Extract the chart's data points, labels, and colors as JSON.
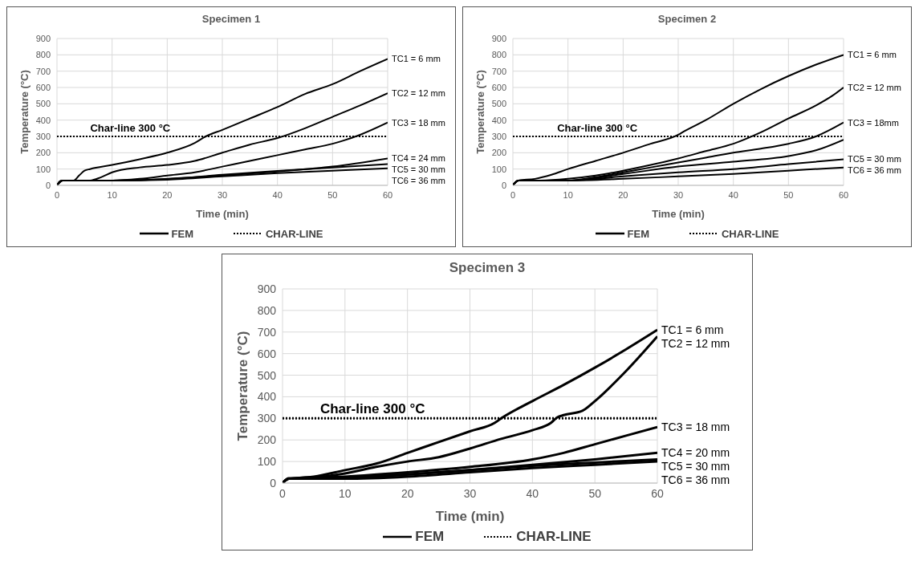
{
  "chart_data": [
    {
      "type": "line",
      "title": "Specimen 1",
      "xlabel": "Time (min)",
      "ylabel": "Temperature (°C)",
      "xlim": [
        0,
        60
      ],
      "xticks": [
        0,
        10,
        20,
        30,
        40,
        50,
        60
      ],
      "ylim": [
        0,
        900
      ],
      "yticks": [
        0,
        100,
        200,
        300,
        400,
        500,
        600,
        700,
        800,
        900
      ],
      "grid": true,
      "legend": "bottom",
      "legend_title": "FEM",
      "marker": "none",
      "annotations": [
        "Char-line 300 °C"
      ],
      "series": [
        {
          "name": "TC1 = 6 mm",
          "color": "#000000",
          "x": [
            0,
            0.5,
            1,
            3,
            4,
            5,
            6,
            10,
            15,
            20,
            25,
            27,
            30,
            35,
            40,
            45,
            50,
            55,
            60
          ],
          "values": [
            0,
            25,
            30,
            30,
            60,
            90,
            100,
            125,
            160,
            200,
            260,
            300,
            340,
            410,
            480,
            560,
            620,
            700,
            775
          ]
        },
        {
          "name": "TC2 = 12 mm",
          "color": "#000000",
          "x": [
            0,
            1,
            6,
            8,
            10,
            15,
            20,
            25,
            30,
            35,
            40,
            45,
            50,
            55,
            60
          ],
          "values": [
            0,
            30,
            30,
            50,
            80,
            110,
            125,
            150,
            200,
            250,
            290,
            350,
            420,
            490,
            565
          ]
        },
        {
          "name": "TC3 = 18 mm",
          "color": "#000000",
          "x": [
            0,
            1,
            10,
            15,
            20,
            25,
            30,
            35,
            40,
            45,
            50,
            52,
            55,
            60
          ],
          "values": [
            0,
            30,
            30,
            40,
            60,
            80,
            115,
            150,
            185,
            220,
            255,
            275,
            310,
            385
          ]
        },
        {
          "name": "TC4 = 24 mm",
          "color": "#000000",
          "x": [
            0,
            1,
            10,
            15,
            20,
            30,
            40,
            50,
            60
          ],
          "values": [
            0,
            30,
            30,
            32,
            40,
            60,
            85,
            115,
            165
          ]
        },
        {
          "name": "TC5 = 30 mm",
          "color": "#000000",
          "x": [
            0,
            1,
            10,
            20,
            30,
            40,
            50,
            60
          ],
          "values": [
            0,
            30,
            30,
            38,
            65,
            88,
            110,
            130
          ]
        },
        {
          "name": "TC6 = 36 mm",
          "color": "#000000",
          "x": [
            0,
            1,
            10,
            20,
            30,
            40,
            50,
            60
          ],
          "values": [
            0,
            30,
            30,
            35,
            55,
            75,
            90,
            105
          ]
        },
        {
          "name": "CHAR-LINE",
          "color": "#000000",
          "line_style": "dotted",
          "x": [
            0,
            60
          ],
          "values": [
            300,
            300
          ]
        }
      ]
    },
    {
      "type": "line",
      "title": "Specimen 2",
      "xlabel": "Time (min)",
      "ylabel": "Temperature (°C)",
      "xlim": [
        0,
        60
      ],
      "xticks": [
        0,
        10,
        20,
        30,
        40,
        50,
        60
      ],
      "ylim": [
        0,
        900
      ],
      "yticks": [
        0,
        100,
        200,
        300,
        400,
        500,
        600,
        700,
        800,
        900
      ],
      "grid": true,
      "legend": "bottom",
      "legend_title": "FEM",
      "marker": "none",
      "annotations": [
        "Char-line 300 °C"
      ],
      "series": [
        {
          "name": "TC1 = 6 mm",
          "color": "#000000",
          "x": [
            0,
            1,
            4,
            7,
            10,
            15,
            20,
            25,
            30,
            31,
            35,
            40,
            45,
            50,
            55,
            60
          ],
          "values": [
            0,
            30,
            40,
            65,
            100,
            150,
            200,
            255,
            310,
            330,
            400,
            500,
            590,
            670,
            740,
            800
          ]
        },
        {
          "name": "TC2 = 12 mm",
          "color": "#000000",
          "x": [
            0,
            1,
            5,
            10,
            15,
            20,
            25,
            30,
            35,
            40,
            45,
            50,
            55,
            58,
            60
          ],
          "values": [
            0,
            30,
            30,
            40,
            60,
            90,
            125,
            165,
            210,
            255,
            325,
            410,
            490,
            550,
            600
          ]
        },
        {
          "name": "TC3 = 18mm",
          "color": "#000000",
          "x": [
            0,
            1,
            10,
            15,
            20,
            25,
            30,
            35,
            40,
            45,
            50,
            55,
            60
          ],
          "values": [
            0,
            30,
            30,
            50,
            80,
            110,
            140,
            170,
            200,
            225,
            255,
            300,
            385
          ]
        },
        {
          "color": "#000000",
          "x": [
            0,
            1,
            10,
            20,
            30,
            40,
            50,
            55,
            60
          ],
          "values": [
            0,
            30,
            30,
            70,
            115,
            145,
            180,
            215,
            280
          ]
        },
        {
          "name": "TC5 = 30 mm",
          "color": "#000000",
          "x": [
            0,
            1,
            10,
            20,
            30,
            40,
            50,
            60
          ],
          "values": [
            0,
            30,
            30,
            55,
            80,
            100,
            130,
            160
          ]
        },
        {
          "name": "TC6 = 36 mm",
          "color": "#000000",
          "x": [
            0,
            1,
            10,
            20,
            30,
            40,
            50,
            60
          ],
          "values": [
            0,
            30,
            30,
            40,
            55,
            70,
            90,
            110
          ]
        },
        {
          "name": "CHAR-LINE",
          "color": "#000000",
          "line_style": "dotted",
          "x": [
            0,
            60
          ],
          "values": [
            300,
            300
          ]
        }
      ]
    },
    {
      "type": "line",
      "title": "Specimen 3",
      "xlabel": "Time (min)",
      "ylabel": "Temperature (°C)",
      "xlim": [
        0,
        60
      ],
      "xticks": [
        0,
        10,
        20,
        30,
        40,
        50,
        60
      ],
      "ylim": [
        0,
        900
      ],
      "yticks": [
        0,
        100,
        200,
        300,
        400,
        500,
        600,
        700,
        800,
        900
      ],
      "grid": true,
      "legend": "bottom",
      "legend_title": "FEM",
      "marker": "none",
      "annotations": [
        "Char-line 300 °C"
      ],
      "series": [
        {
          "name": "TC1 = 6 mm",
          "color": "#000000",
          "x": [
            0,
            1,
            3,
            5,
            10,
            15,
            20,
            25,
            30,
            34,
            35,
            40,
            45,
            50,
            55,
            60
          ],
          "values": [
            0,
            20,
            25,
            30,
            60,
            90,
            140,
            190,
            240,
            280,
            300,
            380,
            455,
            535,
            620,
            710
          ]
        },
        {
          "name": "TC2 = 12 mm",
          "color": "#000000",
          "x": [
            0,
            1,
            5,
            10,
            15,
            20,
            25,
            30,
            35,
            40,
            43,
            44,
            45,
            48,
            50,
            55,
            60
          ],
          "values": [
            0,
            20,
            25,
            45,
            75,
            100,
            120,
            160,
            205,
            245,
            280,
            305,
            315,
            335,
            380,
            520,
            680
          ]
        },
        {
          "name": "TC3 = 18 mm",
          "color": "#000000",
          "x": [
            0,
            1,
            10,
            20,
            30,
            40,
            45,
            50,
            55,
            60
          ],
          "values": [
            0,
            20,
            30,
            50,
            75,
            110,
            140,
            180,
            220,
            260
          ]
        },
        {
          "name": "TC4 = 20 mm",
          "color": "#000000",
          "x": [
            0,
            1,
            10,
            20,
            30,
            40,
            50,
            60
          ],
          "values": [
            0,
            20,
            25,
            40,
            60,
            85,
            110,
            140
          ]
        },
        {
          "name": "TC5 = 30 mm",
          "color": "#000000",
          "x": [
            0,
            1,
            10,
            20,
            30,
            40,
            50,
            60
          ],
          "values": [
            0,
            22,
            25,
            40,
            60,
            80,
            95,
            110
          ]
        },
        {
          "name": "TC6 = 36 mm",
          "color": "#000000",
          "x": [
            0,
            1,
            10,
            20,
            30,
            40,
            50,
            60
          ],
          "values": [
            0,
            20,
            20,
            30,
            50,
            70,
            85,
            100
          ]
        },
        {
          "name": "CHAR-LINE",
          "color": "#000000",
          "line_style": "dotted",
          "x": [
            0,
            60
          ],
          "values": [
            300,
            300
          ]
        }
      ]
    }
  ]
}
